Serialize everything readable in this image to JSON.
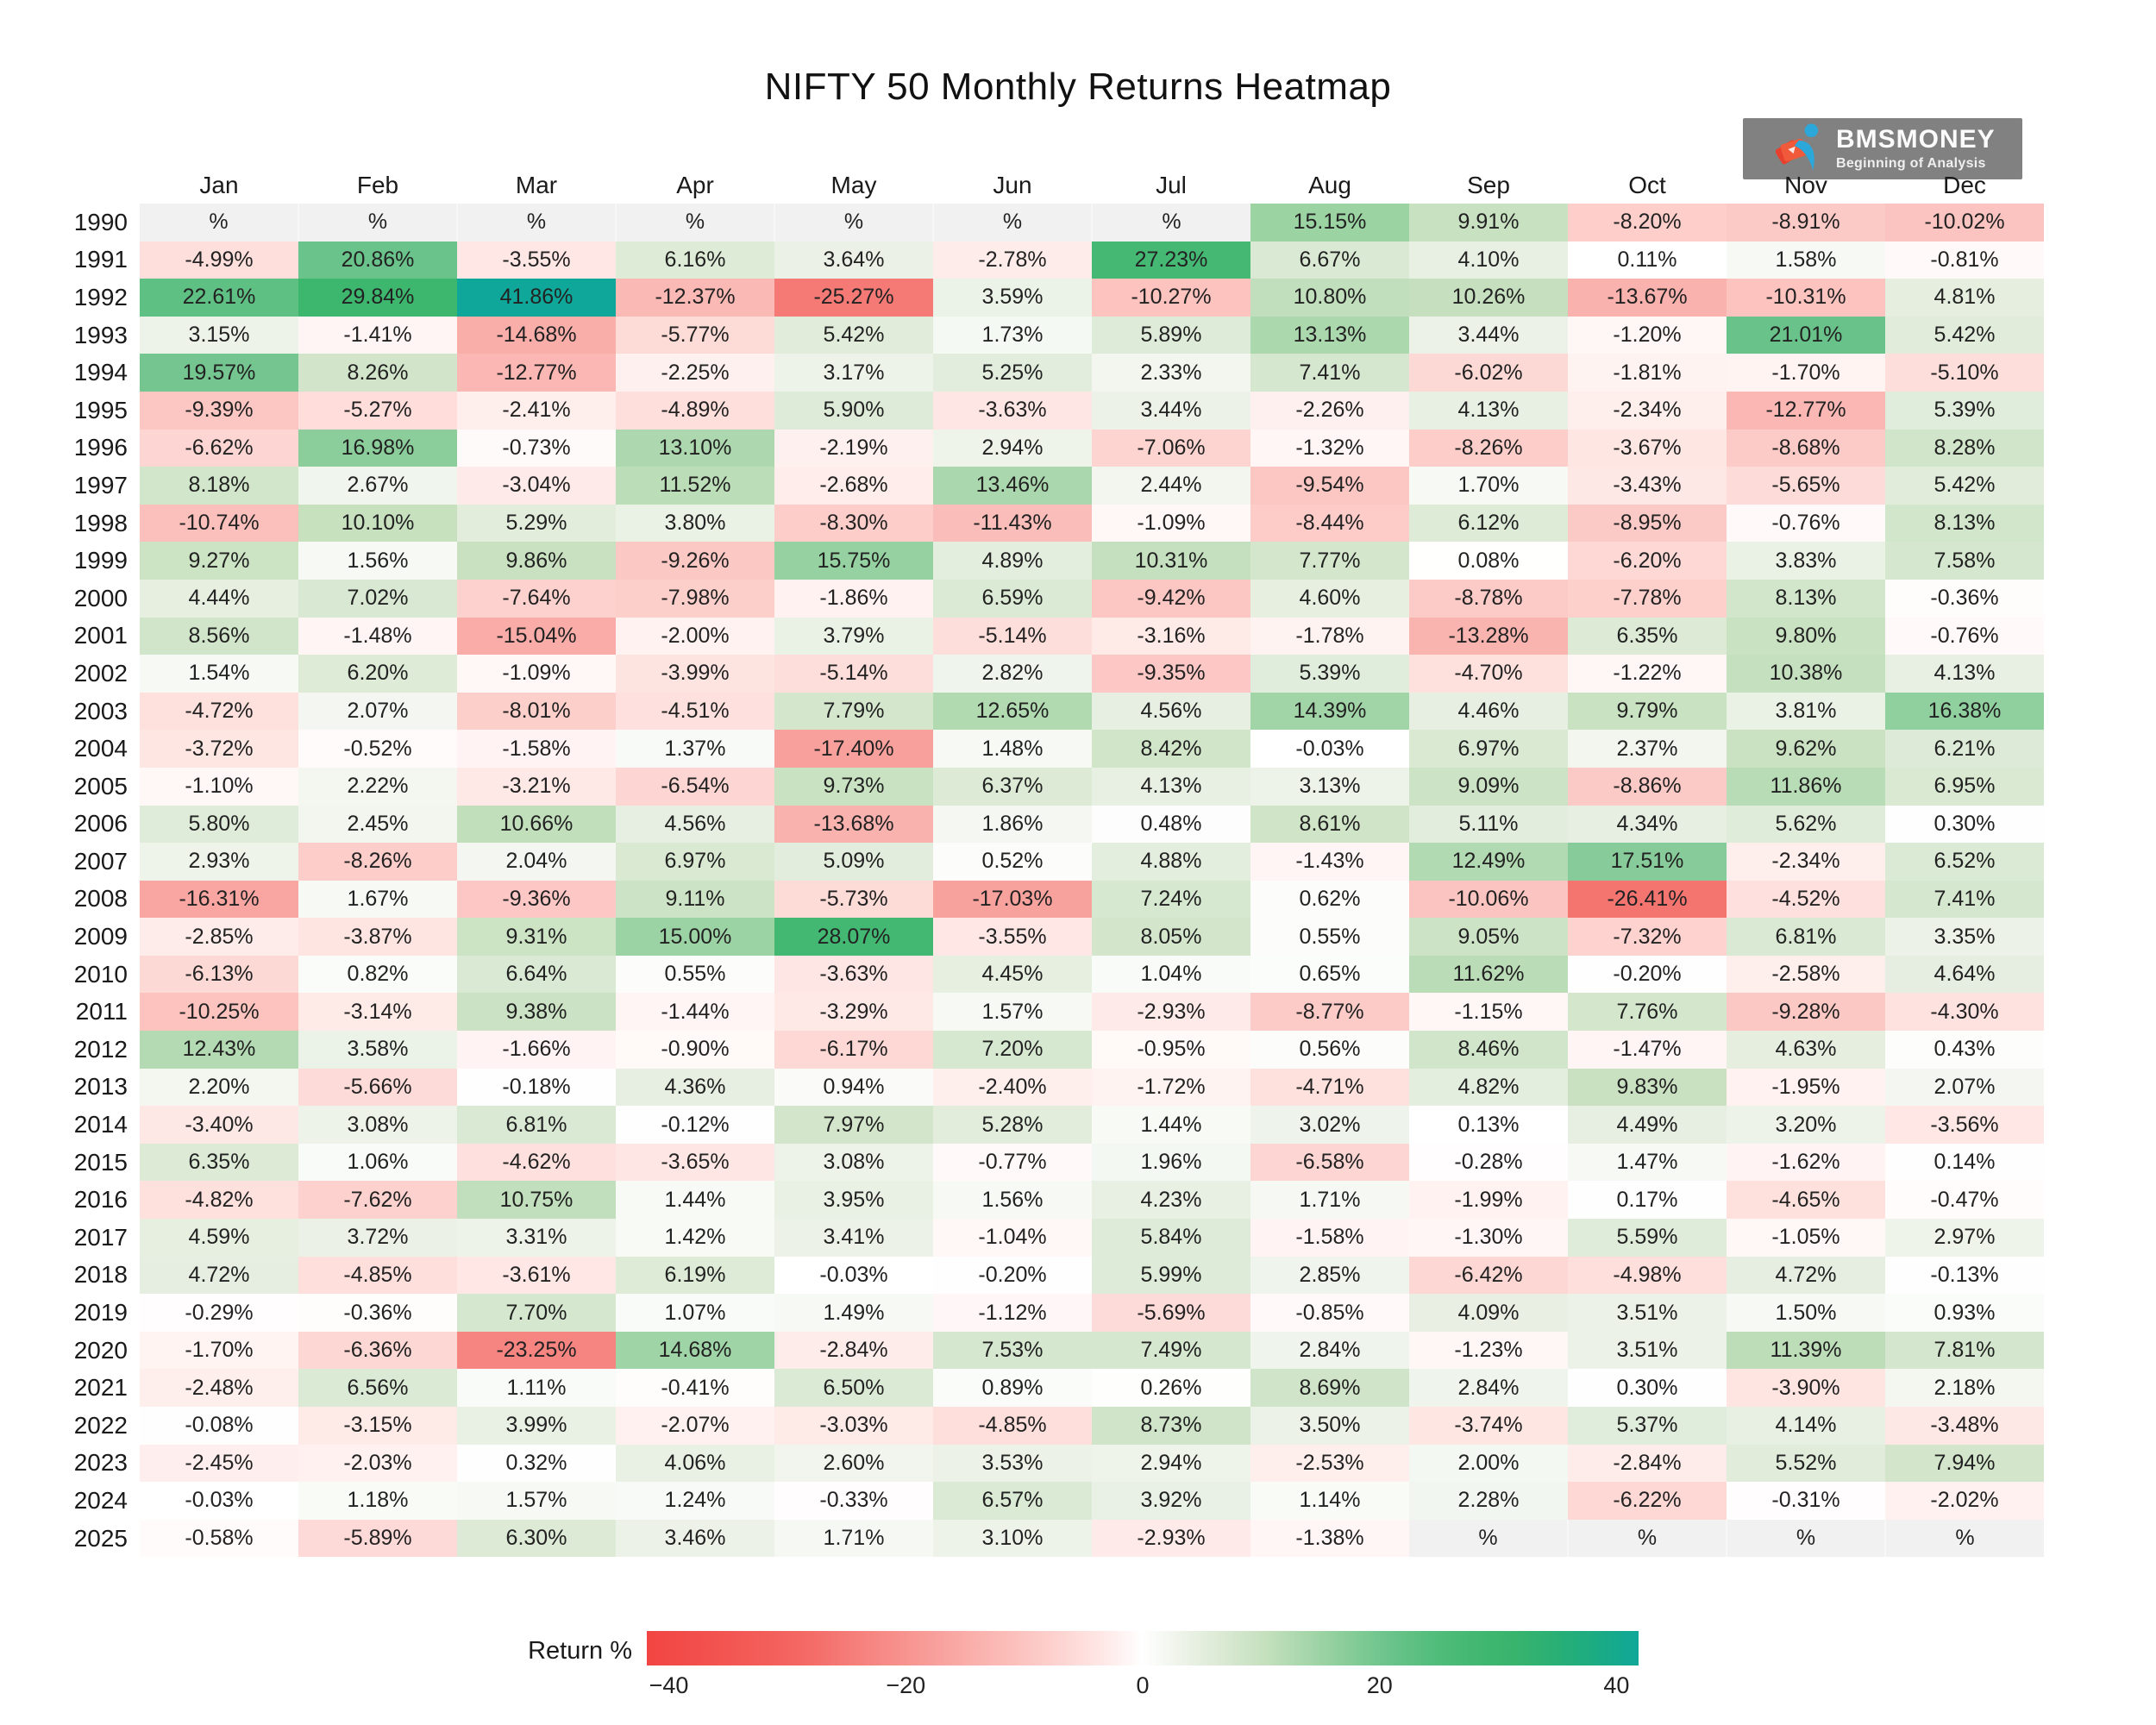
{
  "logo": {
    "title": "BMSMONEY",
    "subtitle": "Beginning of Analysis",
    "colors": {
      "background": "#818181",
      "orange": "#f05a3a",
      "red": "#e8402e",
      "blue": "#2ba7d9",
      "text": "#fbfbfb"
    }
  },
  "chart_data": {
    "type": "heatmap",
    "title": "NIFTY 50 Monthly Returns Heatmap",
    "columns": [
      "Jan",
      "Feb",
      "Mar",
      "Apr",
      "May",
      "Jun",
      "Jul",
      "Aug",
      "Sep",
      "Oct",
      "Nov",
      "Dec"
    ],
    "value_suffix": "%",
    "nan_label": "%",
    "nan_color": "#f1f1f2",
    "rows": [
      {
        "year": "1990",
        "values": [
          null,
          null,
          null,
          null,
          null,
          null,
          null,
          15.15,
          9.91,
          -8.2,
          -8.91,
          -10.02
        ]
      },
      {
        "year": "1991",
        "values": [
          -4.99,
          20.86,
          -3.55,
          6.16,
          3.64,
          -2.78,
          27.23,
          6.67,
          4.1,
          0.11,
          1.58,
          -0.81
        ]
      },
      {
        "year": "1992",
        "values": [
          22.61,
          29.84,
          41.86,
          -12.37,
          -25.27,
          3.59,
          -10.27,
          10.8,
          10.26,
          -13.67,
          -10.31,
          4.81
        ]
      },
      {
        "year": "1993",
        "values": [
          3.15,
          -1.41,
          -14.68,
          -5.77,
          5.42,
          1.73,
          5.89,
          13.13,
          3.44,
          -1.2,
          21.01,
          5.42
        ]
      },
      {
        "year": "1994",
        "values": [
          19.57,
          8.26,
          -12.77,
          -2.25,
          3.17,
          5.25,
          2.33,
          7.41,
          -6.02,
          -1.81,
          -1.7,
          -5.1
        ]
      },
      {
        "year": "1995",
        "values": [
          -9.39,
          -5.27,
          -2.41,
          -4.89,
          5.9,
          -3.63,
          3.44,
          -2.26,
          4.13,
          -2.34,
          -12.77,
          5.39
        ]
      },
      {
        "year": "1996",
        "values": [
          -6.62,
          16.98,
          -0.73,
          13.1,
          -2.19,
          2.94,
          -7.06,
          -1.32,
          -8.26,
          -3.67,
          -8.68,
          8.28
        ]
      },
      {
        "year": "1997",
        "values": [
          8.18,
          2.67,
          -3.04,
          11.52,
          -2.68,
          13.46,
          2.44,
          -9.54,
          1.7,
          -3.43,
          -5.65,
          5.42
        ]
      },
      {
        "year": "1998",
        "values": [
          -10.74,
          10.1,
          5.29,
          3.8,
          -8.3,
          -11.43,
          -1.09,
          -8.44,
          6.12,
          -8.95,
          -0.76,
          8.13
        ]
      },
      {
        "year": "1999",
        "values": [
          9.27,
          1.56,
          9.86,
          -9.26,
          15.75,
          4.89,
          10.31,
          7.77,
          0.08,
          -6.2,
          3.83,
          7.58
        ]
      },
      {
        "year": "2000",
        "values": [
          4.44,
          7.02,
          -7.64,
          -7.98,
          -1.86,
          6.59,
          -9.42,
          4.6,
          -8.78,
          -7.78,
          8.13,
          -0.36
        ]
      },
      {
        "year": "2001",
        "values": [
          8.56,
          -1.48,
          -15.04,
          -2.0,
          3.79,
          -5.14,
          -3.16,
          -1.78,
          -13.28,
          6.35,
          9.8,
          -0.76
        ]
      },
      {
        "year": "2002",
        "values": [
          1.54,
          6.2,
          -1.09,
          -3.99,
          -5.14,
          2.82,
          -9.35,
          5.39,
          -4.7,
          -1.22,
          10.38,
          4.13
        ]
      },
      {
        "year": "2003",
        "values": [
          -4.72,
          2.07,
          -8.01,
          -4.51,
          7.79,
          12.65,
          4.56,
          14.39,
          4.46,
          9.79,
          3.81,
          16.38
        ]
      },
      {
        "year": "2004",
        "values": [
          -3.72,
          -0.52,
          -1.58,
          1.37,
          -17.4,
          1.48,
          8.42,
          -0.03,
          6.97,
          2.37,
          9.62,
          6.21
        ]
      },
      {
        "year": "2005",
        "values": [
          -1.1,
          2.22,
          -3.21,
          -6.54,
          9.73,
          6.37,
          4.13,
          3.13,
          9.09,
          -8.86,
          11.86,
          6.95
        ]
      },
      {
        "year": "2006",
        "values": [
          5.8,
          2.45,
          10.66,
          4.56,
          -13.68,
          1.86,
          0.48,
          8.61,
          5.11,
          4.34,
          5.62,
          0.3
        ]
      },
      {
        "year": "2007",
        "values": [
          2.93,
          -8.26,
          2.04,
          6.97,
          5.09,
          0.52,
          4.88,
          -1.43,
          12.49,
          17.51,
          -2.34,
          6.52
        ]
      },
      {
        "year": "2008",
        "values": [
          -16.31,
          1.67,
          -9.36,
          9.11,
          -5.73,
          -17.03,
          7.24,
          0.62,
          -10.06,
          -26.41,
          -4.52,
          7.41
        ]
      },
      {
        "year": "2009",
        "values": [
          -2.85,
          -3.87,
          9.31,
          15.0,
          28.07,
          -3.55,
          8.05,
          0.55,
          9.05,
          -7.32,
          6.81,
          3.35
        ]
      },
      {
        "year": "2010",
        "values": [
          -6.13,
          0.82,
          6.64,
          0.55,
          -3.63,
          4.45,
          1.04,
          0.65,
          11.62,
          -0.2,
          -2.58,
          4.64
        ]
      },
      {
        "year": "2011",
        "values": [
          -10.25,
          -3.14,
          9.38,
          -1.44,
          -3.29,
          1.57,
          -2.93,
          -8.77,
          -1.15,
          7.76,
          -9.28,
          -4.3
        ]
      },
      {
        "year": "2012",
        "values": [
          12.43,
          3.58,
          -1.66,
          -0.9,
          -6.17,
          7.2,
          -0.95,
          0.56,
          8.46,
          -1.47,
          4.63,
          0.43
        ]
      },
      {
        "year": "2013",
        "values": [
          2.2,
          -5.66,
          -0.18,
          4.36,
          0.94,
          -2.4,
          -1.72,
          -4.71,
          4.82,
          9.83,
          -1.95,
          2.07
        ]
      },
      {
        "year": "2014",
        "values": [
          -3.4,
          3.08,
          6.81,
          -0.12,
          7.97,
          5.28,
          1.44,
          3.02,
          0.13,
          4.49,
          3.2,
          -3.56
        ]
      },
      {
        "year": "2015",
        "values": [
          6.35,
          1.06,
          -4.62,
          -3.65,
          3.08,
          -0.77,
          1.96,
          -6.58,
          -0.28,
          1.47,
          -1.62,
          0.14
        ]
      },
      {
        "year": "2016",
        "values": [
          -4.82,
          -7.62,
          10.75,
          1.44,
          3.95,
          1.56,
          4.23,
          1.71,
          -1.99,
          0.17,
          -4.65,
          -0.47
        ]
      },
      {
        "year": "2017",
        "values": [
          4.59,
          3.72,
          3.31,
          1.42,
          3.41,
          -1.04,
          5.84,
          -1.58,
          -1.3,
          5.59,
          -1.05,
          2.97
        ]
      },
      {
        "year": "2018",
        "values": [
          4.72,
          -4.85,
          -3.61,
          6.19,
          -0.03,
          -0.2,
          5.99,
          2.85,
          -6.42,
          -4.98,
          4.72,
          -0.13
        ]
      },
      {
        "year": "2019",
        "values": [
          -0.29,
          -0.36,
          7.7,
          1.07,
          1.49,
          -1.12,
          -5.69,
          -0.85,
          4.09,
          3.51,
          1.5,
          0.93
        ]
      },
      {
        "year": "2020",
        "values": [
          -1.7,
          -6.36,
          -23.25,
          14.68,
          -2.84,
          7.53,
          7.49,
          2.84,
          -1.23,
          3.51,
          11.39,
          7.81
        ]
      },
      {
        "year": "2021",
        "values": [
          -2.48,
          6.56,
          1.11,
          -0.41,
          6.5,
          0.89,
          0.26,
          8.69,
          2.84,
          0.3,
          -3.9,
          2.18
        ]
      },
      {
        "year": "2022",
        "values": [
          -0.08,
          -3.15,
          3.99,
          -2.07,
          -3.03,
          -4.85,
          8.73,
          3.5,
          -3.74,
          5.37,
          4.14,
          -3.48
        ]
      },
      {
        "year": "2023",
        "values": [
          -2.45,
          -2.03,
          0.32,
          4.06,
          2.6,
          3.53,
          2.94,
          -2.53,
          2.0,
          -2.84,
          5.52,
          7.94
        ]
      },
      {
        "year": "2024",
        "values": [
          -0.03,
          1.18,
          1.57,
          1.24,
          -0.33,
          6.57,
          3.92,
          1.14,
          2.28,
          -6.22,
          -0.31,
          -2.02
        ]
      },
      {
        "year": "2025",
        "values": [
          -0.58,
          -5.89,
          6.3,
          3.46,
          1.71,
          3.1,
          -2.93,
          -1.38,
          null,
          null,
          null,
          null
        ]
      }
    ],
    "colorscale": [
      {
        "v": -45,
        "c": "#f23d3a"
      },
      {
        "v": -30,
        "c": "#f3625e"
      },
      {
        "v": -20,
        "c": "#f79490"
      },
      {
        "v": -10,
        "c": "#fcc4c0"
      },
      {
        "v": -4,
        "c": "#fee4e1"
      },
      {
        "v": 0,
        "c": "#ffffff"
      },
      {
        "v": 4,
        "c": "#e9f0e4"
      },
      {
        "v": 10,
        "c": "#c8e1c0"
      },
      {
        "v": 15,
        "c": "#9cd3a4"
      },
      {
        "v": 20,
        "c": "#70c48e"
      },
      {
        "v": 26,
        "c": "#49bb76"
      },
      {
        "v": 31,
        "c": "#3ab46c"
      },
      {
        "v": 37,
        "c": "#20ad7a"
      },
      {
        "v": 42,
        "c": "#0ea79a"
      }
    ],
    "colorbar": {
      "label": "Return %",
      "ticks": [
        -40,
        -20,
        0,
        20,
        40
      ],
      "range": [
        -41.86,
        41.86
      ]
    },
    "legend_position": "bottom",
    "grid": false
  }
}
